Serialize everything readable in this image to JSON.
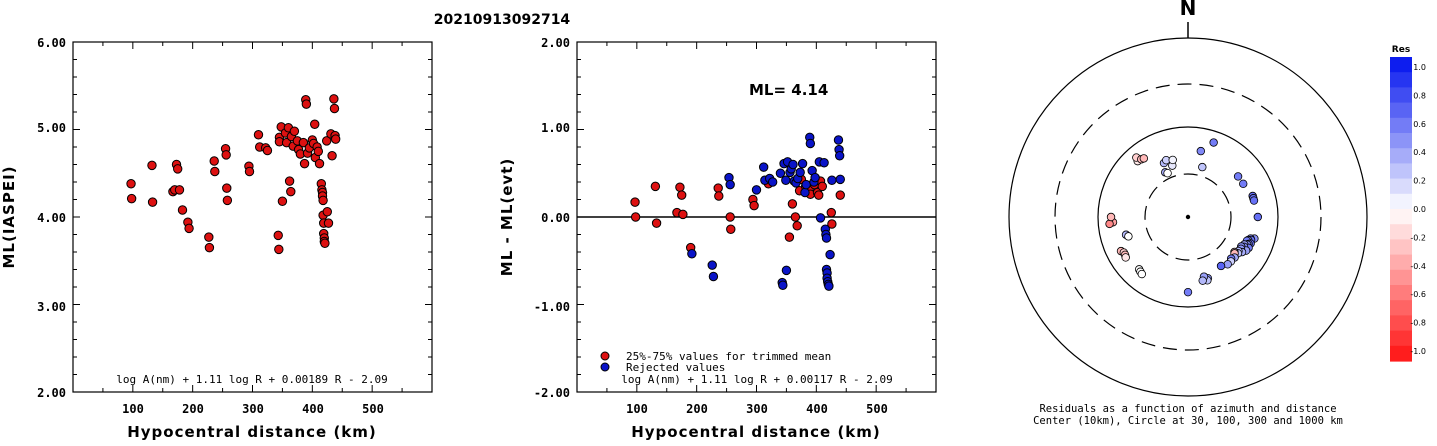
{
  "event_id": "20210913092714",
  "chart_data": [
    {
      "type": "scatter",
      "ylabel": "ML(IASPEI)",
      "xlabel": "Hypocentral distance (km)",
      "xlim": [
        0,
        600
      ],
      "ylim": [
        2.0,
        6.0
      ],
      "xticks": [
        "100",
        "200",
        "300",
        "400",
        "500"
      ],
      "yticks": [
        "2.00",
        "3.00",
        "4.00",
        "5.00",
        "6.00"
      ],
      "formula": "log A(nm) + 1.11 log R + 0.00189 R - 2.09",
      "series": [
        {
          "color": "#dd1111",
          "points": [
            [
              97,
              4.38
            ],
            [
              98,
              4.21
            ],
            [
              132,
              4.59
            ],
            [
              133,
              4.17
            ],
            [
              167,
              4.29
            ],
            [
              170,
              4.31
            ],
            [
              173,
              4.6
            ],
            [
              175,
              4.55
            ],
            [
              178,
              4.31
            ],
            [
              183,
              4.08
            ],
            [
              192,
              3.94
            ],
            [
              194,
              3.87
            ],
            [
              227,
              3.77
            ],
            [
              228,
              3.65
            ],
            [
              236,
              4.64
            ],
            [
              237,
              4.52
            ],
            [
              255,
              4.78
            ],
            [
              256,
              4.71
            ],
            [
              257,
              4.33
            ],
            [
              258,
              4.19
            ],
            [
              294,
              4.58
            ],
            [
              295,
              4.52
            ],
            [
              310,
              4.94
            ],
            [
              312,
              4.8
            ],
            [
              322,
              4.79
            ],
            [
              325,
              4.76
            ],
            [
              343,
              3.79
            ],
            [
              344,
              3.63
            ],
            [
              345,
              4.91
            ],
            [
              345,
              4.86
            ],
            [
              348,
              5.03
            ],
            [
              350,
              4.18
            ],
            [
              355,
              4.96
            ],
            [
              357,
              4.85
            ],
            [
              360,
              5.02
            ],
            [
              362,
              4.41
            ],
            [
              364,
              4.29
            ],
            [
              365,
              4.92
            ],
            [
              368,
              4.81
            ],
            [
              370,
              4.98
            ],
            [
              375,
              4.87
            ],
            [
              377,
              4.77
            ],
            [
              380,
              4.72
            ],
            [
              385,
              4.85
            ],
            [
              387,
              4.61
            ],
            [
              389,
              5.34
            ],
            [
              390,
              5.29
            ],
            [
              392,
              4.73
            ],
            [
              395,
              4.79
            ],
            [
              400,
              4.88
            ],
            [
              402,
              4.84
            ],
            [
              404,
              5.06
            ],
            [
              405,
              4.68
            ],
            [
              408,
              4.8
            ],
            [
              410,
              4.75
            ],
            [
              412,
              4.61
            ],
            [
              415,
              4.38
            ],
            [
              416,
              4.31
            ],
            [
              417,
              4.28
            ],
            [
              417,
              4.24
            ],
            [
              418,
              4.19
            ],
            [
              418,
              4.02
            ],
            [
              419,
              3.93
            ],
            [
              419,
              3.81
            ],
            [
              420,
              3.76
            ],
            [
              420,
              3.72
            ],
            [
              421,
              3.7
            ],
            [
              424,
              4.87
            ],
            [
              425,
              4.06
            ],
            [
              427,
              3.93
            ],
            [
              431,
              4.95
            ],
            [
              433,
              4.7
            ],
            [
              436,
              5.35
            ],
            [
              437,
              5.24
            ],
            [
              438,
              4.93
            ],
            [
              439,
              4.89
            ]
          ]
        }
      ]
    },
    {
      "type": "scatter",
      "ylabel": "ML - ML(evt)",
      "xlabel": "Hypocentral distance (km)",
      "xlim": [
        0,
        600
      ],
      "ylim": [
        -2.0,
        2.0
      ],
      "xticks": [
        "100",
        "200",
        "300",
        "400",
        "500"
      ],
      "yticks": [
        "-2.00",
        "-1.00",
        "0.00",
        "1.00",
        "2.00"
      ],
      "annotation": "ML= 4.14",
      "formula": "log A(nm) + 1.11 log R + 0.00117 R - 2.09",
      "series": [
        {
          "name": "25%-75% values for trimmed mean",
          "color": "#dd1111",
          "points": [
            [
              97,
              0.17
            ],
            [
              98,
              0.0
            ],
            [
              131,
              0.35
            ],
            [
              133,
              -0.07
            ],
            [
              167,
              0.05
            ],
            [
              172,
              0.34
            ],
            [
              175,
              0.25
            ],
            [
              177,
              0.03
            ],
            [
              190,
              -0.35
            ],
            [
              236,
              0.33
            ],
            [
              237,
              0.24
            ],
            [
              256,
              0.0
            ],
            [
              257,
              -0.14
            ],
            [
              294,
              0.2
            ],
            [
              296,
              0.13
            ],
            [
              320,
              0.38
            ],
            [
              355,
              -0.23
            ],
            [
              360,
              0.15
            ],
            [
              365,
              0.0
            ],
            [
              368,
              -0.1
            ],
            [
              372,
              0.3
            ],
            [
              375,
              0.43
            ],
            [
              382,
              0.35
            ],
            [
              388,
              0.31
            ],
            [
              390,
              0.26
            ],
            [
              397,
              0.37
            ],
            [
              402,
              0.28
            ],
            [
              404,
              0.25
            ],
            [
              407,
              0.41
            ],
            [
              410,
              0.35
            ],
            [
              425,
              0.05
            ],
            [
              426,
              -0.08
            ],
            [
              440,
              0.25
            ]
          ]
        },
        {
          "name": "Rejected values",
          "color": "#0a14c8",
          "points": [
            [
              192,
              -0.42
            ],
            [
              226,
              -0.55
            ],
            [
              228,
              -0.68
            ],
            [
              254,
              0.45
            ],
            [
              256,
              0.37
            ],
            [
              300,
              0.31
            ],
            [
              312,
              0.57
            ],
            [
              314,
              0.42
            ],
            [
              322,
              0.44
            ],
            [
              327,
              0.4
            ],
            [
              340,
              0.5
            ],
            [
              343,
              -0.75
            ],
            [
              344,
              -0.78
            ],
            [
              346,
              0.61
            ],
            [
              349,
              0.42
            ],
            [
              350,
              -0.61
            ],
            [
              352,
              0.63
            ],
            [
              356,
              0.51
            ],
            [
              358,
              0.55
            ],
            [
              361,
              0.6
            ],
            [
              363,
              0.41
            ],
            [
              366,
              0.39
            ],
            [
              369,
              0.44
            ],
            [
              373,
              0.51
            ],
            [
              377,
              0.61
            ],
            [
              381,
              0.28
            ],
            [
              383,
              0.37
            ],
            [
              389,
              0.91
            ],
            [
              390,
              0.84
            ],
            [
              393,
              0.53
            ],
            [
              396,
              0.4
            ],
            [
              398,
              0.45
            ],
            [
              405,
              0.63
            ],
            [
              407,
              -0.01
            ],
            [
              413,
              0.62
            ],
            [
              415,
              -0.14
            ],
            [
              416,
              -0.2
            ],
            [
              417,
              -0.24
            ],
            [
              417,
              -0.6
            ],
            [
              418,
              -0.64
            ],
            [
              418,
              -0.7
            ],
            [
              419,
              -0.74
            ],
            [
              420,
              -0.77
            ],
            [
              421,
              -0.79
            ],
            [
              423,
              -0.43
            ],
            [
              426,
              0.42
            ],
            [
              437,
              0.88
            ],
            [
              438,
              0.77
            ],
            [
              439,
              0.7
            ],
            [
              440,
              0.43
            ]
          ]
        }
      ]
    },
    {
      "type": "polar-scatter",
      "north_label": "N",
      "caption_1": "Residuals as a function of azimuth and distance",
      "caption_2": "Center (10km), Circle at 30, 100, 300 and 1000 km",
      "colorbar": {
        "title": "Res",
        "ticks": [
          "1.0",
          "0.8",
          "0.6",
          "0.4",
          "0.2",
          "0.0",
          "-0.2",
          "-0.4",
          "-0.6",
          "-0.8",
          "-1.0"
        ],
        "positive_color": "#0011ee",
        "negative_color": "#ff1111"
      },
      "points": [
        {
          "az": 333,
          "dist": 280,
          "res": 0.35
        },
        {
          "az": 336,
          "dist": 330,
          "res": 0.3
        },
        {
          "az": 339,
          "dist": 340,
          "res": 0.2
        },
        {
          "az": 343,
          "dist": 300,
          "res": 0.1
        },
        {
          "az": 345,
          "dist": 330,
          "res": 0.05
        },
        {
          "az": 19,
          "dist": 440,
          "res": 0.55
        },
        {
          "az": 11,
          "dist": 375,
          "res": 0.5
        },
        {
          "az": 16,
          "dist": 290,
          "res": 0.25
        },
        {
          "az": 335,
          "dist": 270,
          "res": 0.0
        },
        {
          "az": 318,
          "dist": 420,
          "res": -0.1
        },
        {
          "az": 319,
          "dist": 440,
          "res": -0.2
        },
        {
          "az": 321,
          "dist": 415,
          "res": -0.3
        },
        {
          "az": 323,
          "dist": 410,
          "res": -0.3
        },
        {
          "az": 51,
          "dist": 360,
          "res": 0.55
        },
        {
          "az": 59,
          "dist": 360,
          "res": 0.55
        },
        {
          "az": 72,
          "dist": 380,
          "res": 0.6
        },
        {
          "az": 74,
          "dist": 380,
          "res": 0.6
        },
        {
          "az": 76,
          "dist": 380,
          "res": 0.6
        },
        {
          "az": 90,
          "dist": 390,
          "res": 0.6
        },
        {
          "az": 266,
          "dist": 420,
          "res": -0.4
        },
        {
          "az": 265,
          "dist": 440,
          "res": -0.5
        },
        {
          "az": 270,
          "dist": 430,
          "res": -0.3
        },
        {
          "az": 254,
          "dist": 360,
          "res": 0.3
        },
        {
          "az": 252,
          "dist": 350,
          "res": 0.0
        },
        {
          "az": 243,
          "dist": 420,
          "res": -0.3
        },
        {
          "az": 241,
          "dist": 410,
          "res": -0.2
        },
        {
          "az": 239,
          "dist": 410,
          "res": -0.3
        },
        {
          "az": 237,
          "dist": 415,
          "res": -0.1
        },
        {
          "az": 223,
          "dist": 400,
          "res": 0.0
        },
        {
          "az": 221,
          "dist": 405,
          "res": 0.0
        },
        {
          "az": 219,
          "dist": 410,
          "res": 0.0
        },
        {
          "az": 108,
          "dist": 390,
          "res": 0.45
        },
        {
          "az": 109,
          "dist": 370,
          "res": 0.5
        },
        {
          "az": 110,
          "dist": 375,
          "res": 0.6
        },
        {
          "az": 111,
          "dist": 360,
          "res": 0.4
        },
        {
          "az": 112,
          "dist": 355,
          "res": 0.55
        },
        {
          "az": 113,
          "dist": 380,
          "res": 0.6
        },
        {
          "az": 114,
          "dist": 370,
          "res": 0.5
        },
        {
          "az": 115,
          "dist": 365,
          "res": 0.45
        },
        {
          "az": 116,
          "dist": 350,
          "res": 0.4
        },
        {
          "az": 117,
          "dist": 380,
          "res": 0.55
        },
        {
          "az": 118,
          "dist": 355,
          "res": 0.5
        },
        {
          "az": 119,
          "dist": 340,
          "res": 0.45
        },
        {
          "az": 120,
          "dist": 375,
          "res": 0.4
        },
        {
          "az": 121,
          "dist": 345,
          "res": 0.45
        },
        {
          "az": 123,
          "dist": 360,
          "res": 0.35
        },
        {
          "az": 124,
          "dist": 340,
          "res": 0.3
        },
        {
          "az": 126,
          "dist": 345,
          "res": 0.25
        },
        {
          "az": 127,
          "dist": 325,
          "res": -0.2
        },
        {
          "az": 128,
          "dist": 330,
          "res": -0.3
        },
        {
          "az": 131,
          "dist": 345,
          "res": 0.35
        },
        {
          "az": 134,
          "dist": 335,
          "res": 0.55
        },
        {
          "az": 136,
          "dist": 345,
          "res": 0.2
        },
        {
          "az": 140,
          "dist": 345,
          "res": 0.4
        },
        {
          "az": 146,
          "dist": 330,
          "res": 0.65
        },
        {
          "az": 162,
          "dist": 360,
          "res": 0.45
        },
        {
          "az": 163,
          "dist": 370,
          "res": 0.25
        },
        {
          "az": 165,
          "dist": 345,
          "res": 0.4
        },
        {
          "az": 167,
          "dist": 365,
          "res": 0.3
        },
        {
          "az": 180,
          "dist": 420,
          "res": 0.55
        }
      ]
    }
  ]
}
